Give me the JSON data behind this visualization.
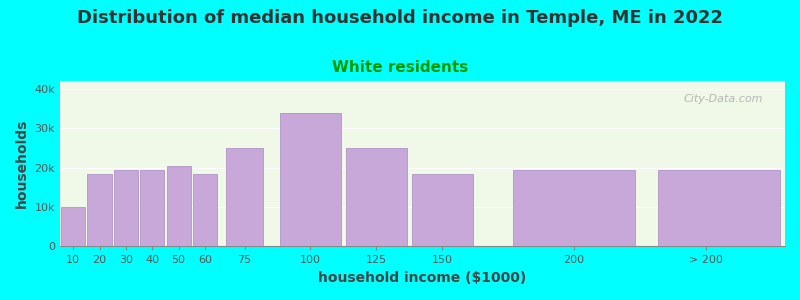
{
  "title": "Distribution of median household income in Temple, ME in 2022",
  "subtitle": "White residents",
  "xlabel": "household income ($1000)",
  "ylabel": "households",
  "background_color": "#00FFFF",
  "plot_bg_color": "#f0f8e8",
  "bar_color": "#c8a8d8",
  "bar_edge_color": "#a888c0",
  "categories": [
    "10",
    "20",
    "30",
    "40",
    "50",
    "60",
    "75",
    "100",
    "125",
    "150",
    "200",
    "> 200"
  ],
  "left_edges": [
    5,
    15,
    25,
    35,
    45,
    55,
    67.5,
    87.5,
    112.5,
    137.5,
    175,
    230
  ],
  "widths": [
    10,
    10,
    10,
    10,
    10,
    10,
    15,
    25,
    25,
    25,
    50,
    50
  ],
  "values": [
    10000,
    18500,
    19500,
    19500,
    20500,
    18500,
    25000,
    34000,
    25000,
    18500,
    19500,
    19500
  ],
  "xtick_positions": [
    10,
    20,
    30,
    40,
    50,
    60,
    75,
    100,
    125,
    150,
    200,
    250
  ],
  "xtick_labels": [
    "10",
    "20",
    "30",
    "40",
    "50",
    "60",
    "75",
    "100",
    "125",
    "150",
    "200",
    "> 200"
  ],
  "ylim": [
    0,
    42000
  ],
  "xlim": [
    5,
    280
  ],
  "yticks": [
    0,
    10000,
    20000,
    30000,
    40000
  ],
  "ytick_labels": [
    "0",
    "10k",
    "20k",
    "30k",
    "40k"
  ],
  "title_fontsize": 13,
  "subtitle_fontsize": 11,
  "axis_label_fontsize": 10,
  "tick_fontsize": 8,
  "title_color": "#333333",
  "subtitle_color": "#009900",
  "axis_label_color": "#444444",
  "tick_color": "#555555",
  "watermark_text": "City-Data.com"
}
